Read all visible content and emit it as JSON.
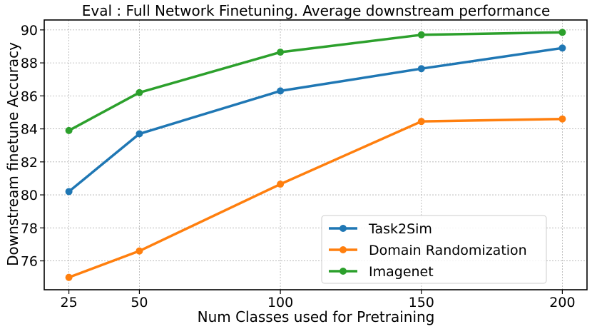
{
  "chart_data": {
    "type": "line",
    "title": "Eval : Full Network Finetuning. Average downstream performance",
    "xlabel": "Num Classes used for Pretraining",
    "ylabel": "Downstream finetune Accuracy",
    "x": [
      25,
      50,
      100,
      150,
      200
    ],
    "x_ticks": [
      25,
      50,
      100,
      150,
      200
    ],
    "y_ticks": [
      76,
      78,
      80,
      82,
      84,
      86,
      88,
      90
    ],
    "xlim": [
      16.25,
      208.75
    ],
    "ylim": [
      74.25,
      90.6
    ],
    "grid": true,
    "legend_position": "lower-right",
    "series": [
      {
        "name": "Task2Sim",
        "color": "#1f77b4",
        "values": [
          80.2,
          83.7,
          86.3,
          87.65,
          88.9
        ]
      },
      {
        "name": "Domain Randomization",
        "color": "#ff7f0e",
        "values": [
          75.0,
          76.6,
          80.65,
          84.45,
          84.6
        ]
      },
      {
        "name": "Imagenet",
        "color": "#2ca02c",
        "values": [
          83.9,
          86.2,
          88.65,
          89.7,
          89.85
        ]
      }
    ]
  }
}
